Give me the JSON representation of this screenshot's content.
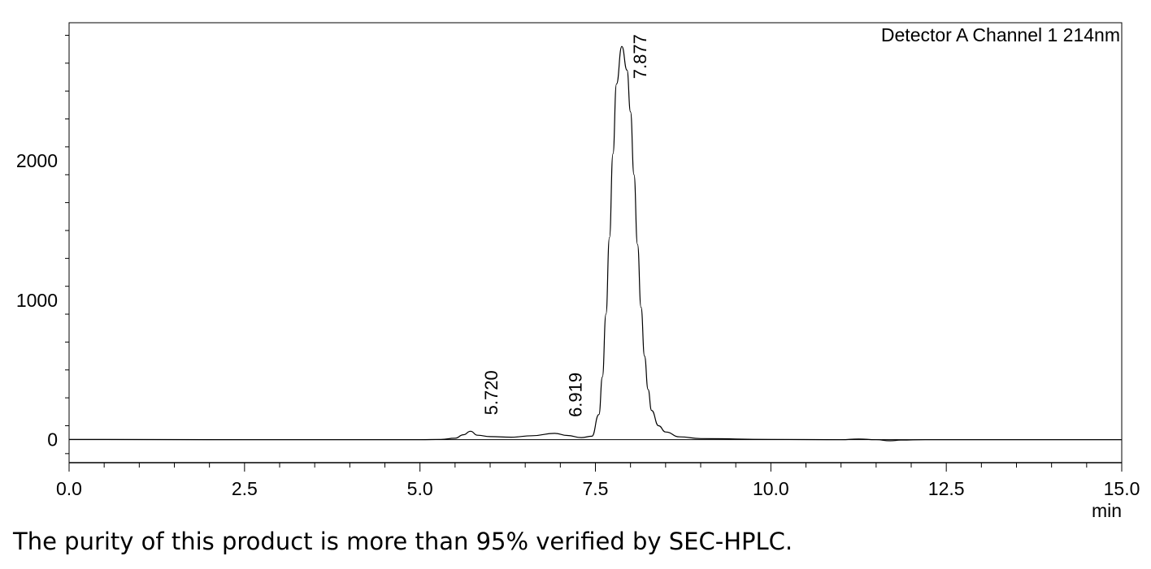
{
  "caption": "The purity of this product is more than 95% verified by SEC-HPLC.",
  "chart_data": {
    "type": "line",
    "title": "",
    "detector_label": "Detector A Channel 1 214nm",
    "xlabel": "min",
    "ylabel": "",
    "xlim": [
      0,
      15
    ],
    "ylim": [
      -165,
      2990
    ],
    "x_ticks": [
      0.0,
      2.5,
      5.0,
      7.5,
      10.0,
      12.5,
      15.0
    ],
    "x_tick_labels": [
      "0.0",
      "2.5",
      "5.0",
      "7.5",
      "10.0",
      "12.5",
      "15.0"
    ],
    "y_ticks": [
      0,
      1000,
      2000
    ],
    "y_tick_labels": [
      "0",
      "1000",
      "2000"
    ],
    "grid": false,
    "baseline": 0,
    "peaks": [
      {
        "label": "5.720",
        "x": 5.72,
        "y": 60
      },
      {
        "label": "6.919",
        "x": 6.919,
        "y": 45
      },
      {
        "label": "7.877",
        "x": 7.877,
        "y": 2820
      }
    ],
    "series": [
      {
        "values": [
          [
            0.0,
            2
          ],
          [
            2.5,
            0
          ],
          [
            5.0,
            0
          ],
          [
            5.3,
            2
          ],
          [
            5.5,
            10
          ],
          [
            5.62,
            35
          ],
          [
            5.72,
            60
          ],
          [
            5.82,
            32
          ],
          [
            6.0,
            22
          ],
          [
            6.3,
            18
          ],
          [
            6.6,
            28
          ],
          [
            6.919,
            45
          ],
          [
            7.1,
            30
          ],
          [
            7.3,
            15
          ],
          [
            7.45,
            25
          ],
          [
            7.55,
            180
          ],
          [
            7.6,
            450
          ],
          [
            7.65,
            900
          ],
          [
            7.7,
            1450
          ],
          [
            7.75,
            2050
          ],
          [
            7.8,
            2550
          ],
          [
            7.877,
            2820
          ],
          [
            7.95,
            2650
          ],
          [
            8.0,
            2350
          ],
          [
            8.05,
            1900
          ],
          [
            8.1,
            1400
          ],
          [
            8.15,
            950
          ],
          [
            8.2,
            600
          ],
          [
            8.25,
            360
          ],
          [
            8.3,
            210
          ],
          [
            8.4,
            100
          ],
          [
            8.5,
            55
          ],
          [
            8.7,
            20
          ],
          [
            9.0,
            8
          ],
          [
            10.0,
            2
          ],
          [
            11.0,
            0
          ],
          [
            11.25,
            5
          ],
          [
            11.5,
            0
          ],
          [
            11.7,
            -8
          ],
          [
            11.85,
            -3
          ],
          [
            12.2,
            0
          ],
          [
            15.0,
            0
          ]
        ]
      }
    ]
  }
}
